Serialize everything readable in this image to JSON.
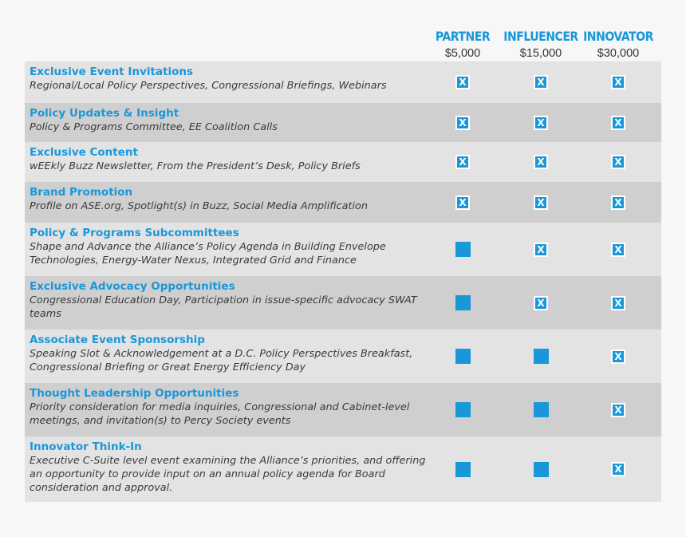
{
  "colors": {
    "accent": "#1a97d9",
    "background": "#f7f7f7",
    "row_light": "#e3e3e3",
    "row_dark": "#cfcfcf"
  },
  "tiers": [
    {
      "name": "PARTNER",
      "price": "$5,000"
    },
    {
      "name": "INFLUENCER",
      "price": "$15,000"
    },
    {
      "name": "INNOVATOR",
      "price": "$30,000"
    }
  ],
  "check_glyph": "X",
  "rows": [
    {
      "title": "Exclusive Event Invitations",
      "description": "Regional/Local Policy Perspectives, Congressional Briefings, Webinars",
      "included": [
        true,
        true,
        true
      ]
    },
    {
      "title": "Policy Updates & Insight",
      "description": "Policy & Programs Committee, EE Coalition Calls",
      "included": [
        true,
        true,
        true
      ]
    },
    {
      "title": "Exclusive Content",
      "description": "wEEkly Buzz Newsletter, From the President’s Desk, Policy Briefs",
      "included": [
        true,
        true,
        true
      ]
    },
    {
      "title": "Brand Promotion",
      "description": "Profile on ASE.org, Spotlight(s) in Buzz, Social Media Amplification",
      "included": [
        true,
        true,
        true
      ]
    },
    {
      "title": "Policy & Programs Subcommittees",
      "description": "Shape and Advance the Alliance’s Policy Agenda in Building Envelope Technologies, Energy-Water Nexus, Integrated Grid and Finance",
      "included": [
        false,
        true,
        true
      ]
    },
    {
      "title": "Exclusive Advocacy Opportunities",
      "description": "Congressional Education Day, Participation in issue-specific advocacy SWAT teams",
      "included": [
        false,
        true,
        true
      ]
    },
    {
      "title": "Associate Event Sponsorship",
      "description": "Speaking Slot & Acknowledgement at a D.C. Policy Perspectives Breakfast, Congressional Briefing or Great Energy Efficiency Day",
      "included": [
        false,
        false,
        true
      ]
    },
    {
      "title": "Thought Leadership Opportunities",
      "description": "Priority consideration for media inquiries, Congressional and Cabinet-level meetings, and invitation(s) to Percy Society events",
      "included": [
        false,
        false,
        true
      ]
    },
    {
      "title": "Innovator Think-In",
      "description": "Executive C-Suite level event examining the Alliance’s priorities, and offering an opportunity to provide input on an annual policy agenda for Board consideration and approval.",
      "included": [
        false,
        false,
        true
      ]
    }
  ]
}
